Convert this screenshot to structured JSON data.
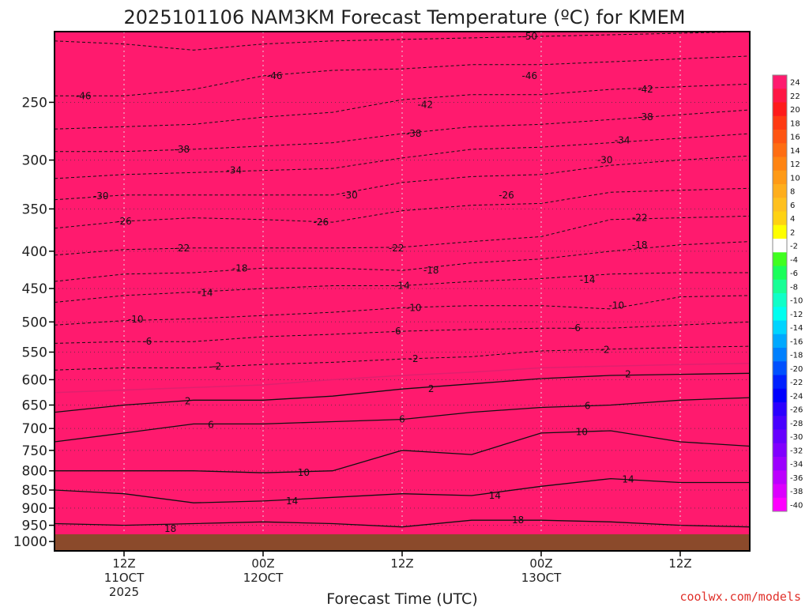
{
  "title": "2025101106 NAM3KM Forecast Temperature (ºC) for KMEM",
  "credit": "coolwx.com/models",
  "colors": {
    "frame": "#000000",
    "ground": "#8b4a2b",
    "zero_line": "#e0206e",
    "grid": "#333333",
    "credit": "#e0302a"
  },
  "chart_data": {
    "type": "heatmap",
    "title": "2025101106 NAM3KM Forecast Temperature (ºC) for KMEM",
    "xlabel": "Forecast Time (UTC)",
    "ylabel": "",
    "x_ticks": [
      {
        "hour": 6,
        "label": [
          "12Z",
          "11OCT",
          "2025"
        ]
      },
      {
        "hour": 18,
        "label": [
          "00Z",
          "12OCT"
        ]
      },
      {
        "hour": 30,
        "label": [
          "12Z"
        ]
      },
      {
        "hour": 42,
        "label": [
          "00Z",
          "13OCT"
        ]
      },
      {
        "hour": 54,
        "label": [
          "12Z"
        ]
      }
    ],
    "xlim_hours": [
      0,
      60
    ],
    "y_axis": "pressure (mb), log scale, inverted",
    "ylim": [
      1030,
      200
    ],
    "y_ticks": [
      250,
      300,
      350,
      400,
      450,
      500,
      550,
      600,
      650,
      700,
      750,
      800,
      850,
      900,
      950,
      1000
    ],
    "grid": true,
    "colorbar_labels": [
      24,
      22,
      20,
      18,
      16,
      14,
      12,
      10,
      8,
      6,
      4,
      2,
      -2,
      -4,
      -6,
      -8,
      -10,
      -12,
      -14,
      -16,
      -18,
      -20,
      -22,
      -24,
      -26,
      -28,
      -30,
      -32,
      -34,
      -36,
      -38,
      -40
    ],
    "colorbar_colors": [
      "#ff1a6e",
      "#ff1644",
      "#ff1a1a",
      "#ff3a12",
      "#ff5512",
      "#ff6d12",
      "#ff8412",
      "#ff9a16",
      "#ffae1c",
      "#ffc01e",
      "#ffd212",
      "#ffff00",
      "#ffffff",
      "#40ff20",
      "#1aff5a",
      "#18ff96",
      "#10ffc8",
      "#00fff0",
      "#00d4ff",
      "#00a8ff",
      "#0080ff",
      "#0050ff",
      "#0020ff",
      "#0000ff",
      "#2a00ff",
      "#4800ff",
      "#6600ff",
      "#8000ff",
      "#9c00ff",
      "#bc00ff",
      "#dc00ff",
      "#ff00ff"
    ],
    "contour_levels": [
      -50,
      -46,
      -42,
      -38,
      -34,
      -30,
      -26,
      -22,
      -18,
      -14,
      -10,
      -6,
      -2,
      0,
      2,
      6,
      10,
      14,
      18
    ],
    "series": [
      {
        "name": "-50",
        "hours": [
          0,
          6,
          12,
          18,
          24,
          30,
          36,
          42,
          48,
          54,
          60
        ],
        "pressure": [
          206,
          208,
          212,
          208,
          206,
          205,
          204,
          203,
          202,
          201,
          200
        ]
      },
      {
        "name": "-46",
        "hours": [
          0,
          6,
          12,
          18,
          24,
          30,
          36,
          42,
          48,
          54,
          60
        ],
        "pressure": [
          245,
          245,
          240,
          230,
          226,
          225,
          222,
          222,
          220,
          218,
          216
        ]
      },
      {
        "name": "-42",
        "hours": [
          0,
          6,
          12,
          18,
          24,
          30,
          36,
          42,
          48,
          54,
          60
        ],
        "pressure": [
          272,
          270,
          268,
          262,
          258,
          248,
          244,
          244,
          240,
          238,
          236
        ]
      },
      {
        "name": "-38",
        "hours": [
          0,
          6,
          12,
          18,
          24,
          30,
          36,
          42,
          48,
          54,
          60
        ],
        "pressure": [
          292,
          292,
          290,
          287,
          284,
          276,
          270,
          268,
          264,
          260,
          256
        ]
      },
      {
        "name": "-34",
        "hours": [
          0,
          6,
          12,
          18,
          24,
          30,
          36,
          42,
          48,
          54,
          60
        ],
        "pressure": [
          318,
          314,
          312,
          310,
          308,
          298,
          290,
          288,
          284,
          280,
          276
        ]
      },
      {
        "name": "-30",
        "hours": [
          0,
          6,
          12,
          18,
          24,
          30,
          36,
          42,
          48,
          54,
          60
        ],
        "pressure": [
          340,
          335,
          335,
          335,
          335,
          322,
          316,
          314,
          305,
          300,
          296
        ]
      },
      {
        "name": "-26",
        "hours": [
          0,
          6,
          12,
          18,
          24,
          30,
          36,
          42,
          48,
          54,
          60
        ],
        "pressure": [
          372,
          364,
          360,
          362,
          365,
          352,
          346,
          344,
          332,
          330,
          328
        ]
      },
      {
        "name": "-22",
        "hours": [
          0,
          6,
          12,
          18,
          24,
          30,
          36,
          42,
          48,
          54,
          60
        ],
        "pressure": [
          405,
          398,
          396,
          396,
          396,
          395,
          388,
          382,
          362,
          360,
          358
        ]
      },
      {
        "name": "-18",
        "hours": [
          0,
          6,
          12,
          18,
          24,
          30,
          36,
          42,
          48,
          54,
          60
        ],
        "pressure": [
          440,
          430,
          428,
          422,
          422,
          425,
          415,
          410,
          400,
          392,
          388
        ]
      },
      {
        "name": "-14",
        "hours": [
          0,
          6,
          12,
          18,
          24,
          30,
          36,
          42,
          48,
          54,
          60
        ],
        "pressure": [
          470,
          460,
          455,
          450,
          446,
          446,
          440,
          436,
          430,
          428,
          428
        ]
      },
      {
        "name": "-10",
        "hours": [
          0,
          6,
          12,
          18,
          24,
          30,
          36,
          42,
          48,
          54,
          60
        ],
        "pressure": [
          505,
          498,
          495,
          490,
          485,
          478,
          475,
          475,
          480,
          462,
          460
        ]
      },
      {
        "name": "-6",
        "hours": [
          0,
          6,
          12,
          18,
          24,
          30,
          36,
          42,
          48,
          54,
          60
        ],
        "pressure": [
          535,
          532,
          532,
          524,
          520,
          515,
          512,
          510,
          510,
          505,
          500
        ]
      },
      {
        "name": "-2",
        "hours": [
          0,
          6,
          12,
          18,
          24,
          30,
          36,
          42,
          48,
          54,
          60
        ],
        "pressure": [
          582,
          578,
          578,
          572,
          568,
          562,
          558,
          548,
          545,
          542,
          540
        ]
      },
      {
        "name": "0",
        "hours": [
          0,
          6,
          12,
          18,
          24,
          30,
          36,
          42,
          48,
          54,
          60
        ],
        "pressure": [
          625,
          620,
          615,
          610,
          600,
          592,
          586,
          578,
          575,
          572,
          570
        ]
      },
      {
        "name": "2",
        "hours": [
          0,
          6,
          12,
          18,
          24,
          30,
          36,
          42,
          48,
          54,
          60
        ],
        "pressure": [
          665,
          650,
          640,
          640,
          632,
          618,
          608,
          598,
          592,
          590,
          588
        ]
      },
      {
        "name": "6",
        "hours": [
          0,
          6,
          12,
          18,
          24,
          30,
          36,
          42,
          48,
          54,
          60
        ],
        "pressure": [
          730,
          710,
          690,
          690,
          685,
          680,
          665,
          655,
          650,
          640,
          635
        ]
      },
      {
        "name": "10",
        "hours": [
          0,
          6,
          12,
          18,
          24,
          30,
          36,
          42,
          48,
          54,
          60
        ],
        "pressure": [
          800,
          800,
          800,
          805,
          800,
          750,
          760,
          710,
          705,
          730,
          740
        ]
      },
      {
        "name": "14",
        "hours": [
          0,
          6,
          12,
          18,
          24,
          30,
          36,
          42,
          48,
          54,
          60
        ],
        "pressure": [
          850,
          860,
          885,
          880,
          870,
          860,
          865,
          840,
          820,
          830,
          830
        ]
      },
      {
        "name": "18",
        "hours": [
          0,
          6,
          12,
          18,
          24,
          30,
          36,
          42,
          48,
          54,
          60
        ],
        "pressure": [
          945,
          950,
          945,
          940,
          945,
          955,
          935,
          935,
          940,
          950,
          955
        ]
      }
    ],
    "label_positions": [
      {
        "level": "-50",
        "hour": 41,
        "pressure": 203
      },
      {
        "level": "-46",
        "hour": 19,
        "pressure": 230
      },
      {
        "level": "-46",
        "hour": 41,
        "pressure": 230
      },
      {
        "level": "-46",
        "hour": 2.5,
        "pressure": 245
      },
      {
        "level": "-42",
        "hour": 32,
        "pressure": 252
      },
      {
        "level": "-42",
        "hour": 51,
        "pressure": 240
      },
      {
        "level": "-38",
        "hour": 11,
        "pressure": 290
      },
      {
        "level": "-38",
        "hour": 31,
        "pressure": 276
      },
      {
        "level": "-38",
        "hour": 51,
        "pressure": 262
      },
      {
        "level": "-34",
        "hour": 15.5,
        "pressure": 310
      },
      {
        "level": "-34",
        "hour": 49,
        "pressure": 282
      },
      {
        "level": "-30",
        "hour": 4,
        "pressure": 336
      },
      {
        "level": "-30",
        "hour": 25.5,
        "pressure": 335
      },
      {
        "level": "-30",
        "hour": 47.5,
        "pressure": 300
      },
      {
        "level": "-26",
        "hour": 6,
        "pressure": 364
      },
      {
        "level": "-26",
        "hour": 23,
        "pressure": 365
      },
      {
        "level": "-26",
        "hour": 39,
        "pressure": 335
      },
      {
        "level": "-22",
        "hour": 11,
        "pressure": 396
      },
      {
        "level": "-22",
        "hour": 29.5,
        "pressure": 396
      },
      {
        "level": "-22",
        "hour": 50.5,
        "pressure": 360
      },
      {
        "level": "-18",
        "hour": 16,
        "pressure": 422
      },
      {
        "level": "-18",
        "hour": 32.5,
        "pressure": 425
      },
      {
        "level": "-18",
        "hour": 50.5,
        "pressure": 392
      },
      {
        "level": "-14",
        "hour": 13,
        "pressure": 456
      },
      {
        "level": "-14",
        "hour": 30,
        "pressure": 446
      },
      {
        "level": "-14",
        "hour": 46,
        "pressure": 438
      },
      {
        "level": "-10",
        "hour": 7,
        "pressure": 496
      },
      {
        "level": "-10",
        "hour": 31,
        "pressure": 478
      },
      {
        "level": "-10",
        "hour": 48.5,
        "pressure": 475
      },
      {
        "level": "-6",
        "hour": 8,
        "pressure": 532
      },
      {
        "level": "-6",
        "hour": 29.5,
        "pressure": 515
      },
      {
        "level": "-6",
        "hour": 45,
        "pressure": 510
      },
      {
        "level": "-2",
        "hour": 14,
        "pressure": 575
      },
      {
        "level": "-2",
        "hour": 31,
        "pressure": 562
      },
      {
        "level": "-2",
        "hour": 47.5,
        "pressure": 546
      },
      {
        "level": "2",
        "hour": 11.5,
        "pressure": 642
      },
      {
        "level": "2",
        "hour": 32.5,
        "pressure": 618
      },
      {
        "level": "2",
        "hour": 49.5,
        "pressure": 590
      },
      {
        "level": "6",
        "hour": 13.5,
        "pressure": 692
      },
      {
        "level": "6",
        "hour": 30,
        "pressure": 680
      },
      {
        "level": "6",
        "hour": 46,
        "pressure": 652
      },
      {
        "level": "10",
        "hour": 21.5,
        "pressure": 805
      },
      {
        "level": "10",
        "hour": 45.5,
        "pressure": 708
      },
      {
        "level": "14",
        "hour": 20.5,
        "pressure": 880
      },
      {
        "level": "14",
        "hour": 38,
        "pressure": 865
      },
      {
        "level": "14",
        "hour": 49.5,
        "pressure": 822
      },
      {
        "level": "18",
        "hour": 10,
        "pressure": 960
      },
      {
        "level": "18",
        "hour": 40,
        "pressure": 935
      }
    ]
  }
}
